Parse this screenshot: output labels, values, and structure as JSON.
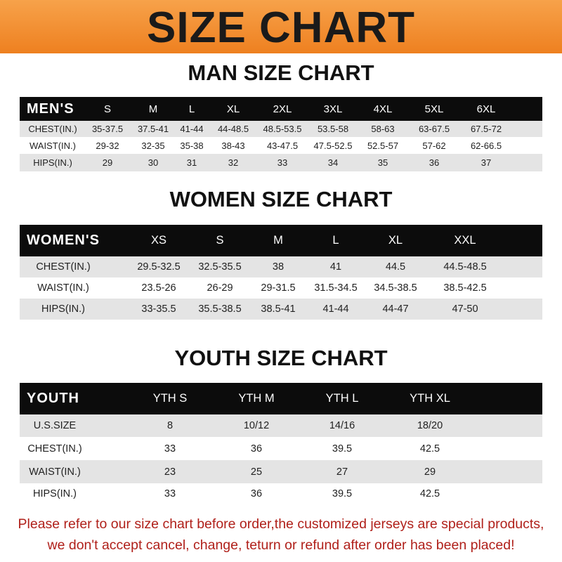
{
  "banner_title": "SIZE CHART",
  "men": {
    "title": "MAN SIZE CHART",
    "header": "MEN'S",
    "sizes": [
      "S",
      "M",
      "L",
      "XL",
      "2XL",
      "3XL",
      "4XL",
      "5XL",
      "6XL"
    ],
    "rows": [
      {
        "label": "CHEST(IN.)",
        "values": [
          "35-37.5",
          "37.5-41",
          "41-44",
          "44-48.5",
          "48.5-53.5",
          "53.5-58",
          "58-63",
          "63-67.5",
          "67.5-72"
        ]
      },
      {
        "label": "WAIST(IN.)",
        "values": [
          "29-32",
          "32-35",
          "35-38",
          "38-43",
          "43-47.5",
          "47.5-52.5",
          "52.5-57",
          "57-62",
          "62-66.5"
        ]
      },
      {
        "label": "HIPS(IN.)",
        "values": [
          "29",
          "30",
          "31",
          "32",
          "33",
          "34",
          "35",
          "36",
          "37"
        ]
      }
    ]
  },
  "women": {
    "title": "WOMEN SIZE CHART",
    "header": "WOMEN'S",
    "sizes": [
      "XS",
      "S",
      "M",
      "L",
      "XL",
      "XXL"
    ],
    "rows": [
      {
        "label": "CHEST(IN.)",
        "values": [
          "29.5-32.5",
          "32.5-35.5",
          "38",
          "41",
          "44.5",
          "44.5-48.5"
        ]
      },
      {
        "label": "WAIST(IN.)",
        "values": [
          "23.5-26",
          "26-29",
          "29-31.5",
          "31.5-34.5",
          "34.5-38.5",
          "38.5-42.5"
        ]
      },
      {
        "label": "HIPS(IN.)",
        "values": [
          "33-35.5",
          "35.5-38.5",
          "38.5-41",
          "41-44",
          "44-47",
          "47-50"
        ]
      }
    ]
  },
  "youth": {
    "title": "YOUTH SIZE CHART",
    "header": "YOUTH",
    "sizes": [
      "YTH S",
      "YTH M",
      "YTH L",
      "YTH XL"
    ],
    "rows": [
      {
        "label": "U.S.SIZE",
        "values": [
          "8",
          "10/12",
          "14/16",
          "18/20"
        ]
      },
      {
        "label": "CHEST(IN.)",
        "values": [
          "33",
          "36",
          "39.5",
          "42.5"
        ]
      },
      {
        "label": "WAIST(IN.)",
        "values": [
          "23",
          "25",
          "27",
          "29"
        ]
      },
      {
        "label": "HIPS(IN.)",
        "values": [
          "33",
          "36",
          "39.5",
          "42.5"
        ]
      }
    ]
  },
  "footer": {
    "line1": "Please refer to our size chart before order,the customized jerseys are special products,",
    "line2": "we don't accept cancel, change, teturn or refund after order has been placed!"
  },
  "colors": {
    "banner": "#ee8020",
    "header_row": "#0c0c0c",
    "shaded_row": "#e4e4e4",
    "footer_text": "#b0201a"
  }
}
